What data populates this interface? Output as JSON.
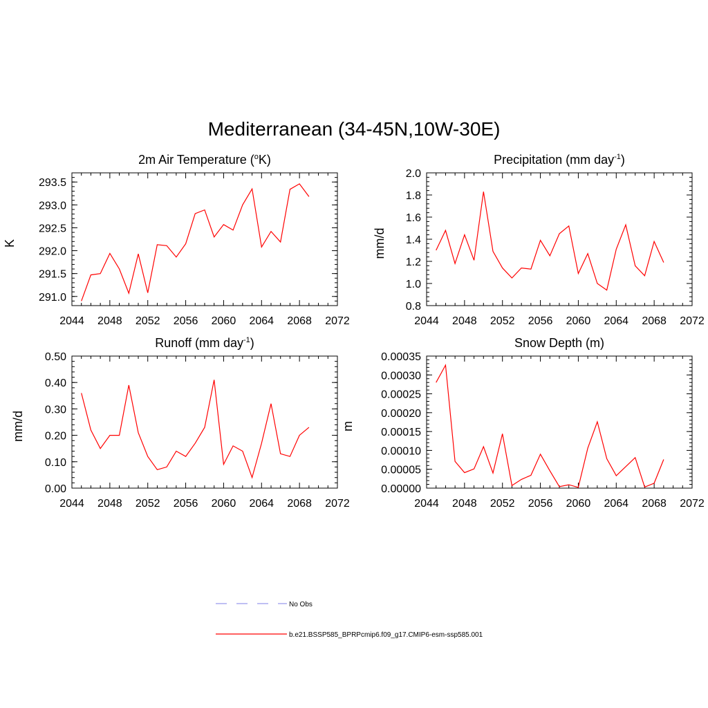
{
  "main_title": "Mediterranean (34-45N,10W-30E)",
  "legend": {
    "entries": [
      {
        "label": "No Obs",
        "color": "#9999ee",
        "dashed": true
      },
      {
        "label": "b.e21.BSSP585_BPRPcmip6.f09_g17.CMIP6-esm-ssp585.001",
        "color": "#ff0000",
        "dashed": false
      }
    ]
  },
  "chart_data": [
    {
      "type": "line",
      "title": "2m Air Temperature (",
      "title_sup": "o",
      "title_tail": "K)",
      "ylabel": "K",
      "xlim": [
        2044,
        2072
      ],
      "ylim": [
        290.8,
        293.7
      ],
      "xticks": [
        2044,
        2048,
        2052,
        2056,
        2060,
        2064,
        2068,
        2072
      ],
      "yticks": [
        291.0,
        291.5,
        292.0,
        292.5,
        293.0,
        293.5
      ],
      "ytick_labels": [
        "291.0",
        "291.5",
        "292.0",
        "292.5",
        "293.0",
        "293.5"
      ],
      "series": [
        {
          "color": "#ff0000",
          "x": [
            2045,
            2046,
            2047,
            2048,
            2049,
            2050,
            2051,
            2052,
            2053,
            2054,
            2055,
            2056,
            2057,
            2058,
            2059,
            2060,
            2061,
            2062,
            2063,
            2064,
            2065,
            2066,
            2067,
            2068,
            2069
          ],
          "values": [
            290.9,
            291.47,
            291.5,
            291.94,
            291.6,
            291.07,
            291.93,
            291.08,
            292.13,
            292.11,
            291.86,
            292.15,
            292.81,
            292.89,
            292.3,
            292.57,
            292.45,
            293.0,
            293.35,
            292.08,
            292.42,
            292.19,
            293.34,
            293.46,
            293.18
          ]
        }
      ]
    },
    {
      "type": "line",
      "title": "Precipitation (mm day",
      "title_sup": "-1",
      "title_tail": ")",
      "ylabel": "mm/d",
      "xlim": [
        2044,
        2072
      ],
      "ylim": [
        0.8,
        2.0
      ],
      "xticks": [
        2044,
        2048,
        2052,
        2056,
        2060,
        2064,
        2068,
        2072
      ],
      "yticks": [
        0.8,
        1.0,
        1.2,
        1.4,
        1.6,
        1.8,
        2.0
      ],
      "ytick_labels": [
        "0.8",
        "1.0",
        "1.2",
        "1.4",
        "1.6",
        "1.8",
        "2.0"
      ],
      "series": [
        {
          "color": "#ff0000",
          "x": [
            2045,
            2046,
            2047,
            2048,
            2049,
            2050,
            2051,
            2052,
            2053,
            2054,
            2055,
            2056,
            2057,
            2058,
            2059,
            2060,
            2061,
            2062,
            2063,
            2064,
            2065,
            2066,
            2067,
            2068,
            2069
          ],
          "values": [
            1.3,
            1.48,
            1.18,
            1.44,
            1.21,
            1.83,
            1.29,
            1.14,
            1.05,
            1.14,
            1.13,
            1.39,
            1.25,
            1.45,
            1.52,
            1.09,
            1.27,
            1.0,
            0.94,
            1.31,
            1.53,
            1.16,
            1.07,
            1.38,
            1.19
          ]
        }
      ]
    },
    {
      "type": "line",
      "title": "Runoff (mm day",
      "title_sup": "-1",
      "title_tail": ")",
      "ylabel": "mm/d",
      "xlim": [
        2044,
        2072
      ],
      "ylim": [
        0.0,
        0.5
      ],
      "xticks": [
        2044,
        2048,
        2052,
        2056,
        2060,
        2064,
        2068,
        2072
      ],
      "yticks": [
        0.0,
        0.1,
        0.2,
        0.3,
        0.4,
        0.5
      ],
      "ytick_labels": [
        "0.00",
        "0.10",
        "0.20",
        "0.30",
        "0.40",
        "0.50"
      ],
      "series": [
        {
          "color": "#ff0000",
          "x": [
            2045,
            2046,
            2047,
            2048,
            2049,
            2050,
            2051,
            2052,
            2053,
            2054,
            2055,
            2056,
            2057,
            2058,
            2059,
            2060,
            2061,
            2062,
            2063,
            2064,
            2065,
            2066,
            2067,
            2068,
            2069
          ],
          "values": [
            0.36,
            0.22,
            0.15,
            0.2,
            0.2,
            0.39,
            0.21,
            0.12,
            0.07,
            0.08,
            0.14,
            0.12,
            0.17,
            0.23,
            0.41,
            0.09,
            0.16,
            0.14,
            0.04,
            0.17,
            0.32,
            0.13,
            0.12,
            0.2,
            0.23
          ]
        }
      ]
    },
    {
      "type": "line",
      "title": "Snow Depth (m)",
      "title_sup": "",
      "title_tail": "",
      "ylabel": "m",
      "xlim": [
        2044,
        2072
      ],
      "ylim": [
        0.0,
        0.00035
      ],
      "xticks": [
        2044,
        2048,
        2052,
        2056,
        2060,
        2064,
        2068,
        2072
      ],
      "yticks": [
        0.0,
        5e-05,
        0.0001,
        0.00015,
        0.0002,
        0.00025,
        0.0003,
        0.00035
      ],
      "ytick_labels": [
        "0.00000",
        "0.00005",
        "0.00010",
        "0.00015",
        "0.00020",
        "0.00025",
        "0.00030",
        "0.00035"
      ],
      "series": [
        {
          "color": "#ff0000",
          "x": [
            2045,
            2046,
            2047,
            2048,
            2049,
            2050,
            2051,
            2052,
            2053,
            2054,
            2055,
            2056,
            2057,
            2058,
            2059,
            2060,
            2061,
            2062,
            2063,
            2064,
            2065,
            2066,
            2067,
            2068,
            2069
          ],
          "values": [
            0.00028,
            0.000326,
            7.1e-05,
            4.1e-05,
            5.1e-05,
            0.00011,
            4e-05,
            0.000144,
            7e-06,
            2.3e-05,
            3.4e-05,
            9e-05,
            4.6e-05,
            4e-06,
            9e-06,
            2e-06,
            0.000106,
            0.000176,
            7.8e-05,
            3.3e-05,
            5.7e-05,
            8.1e-05,
            3e-06,
            1.3e-05,
            7.6e-05
          ]
        }
      ]
    }
  ]
}
